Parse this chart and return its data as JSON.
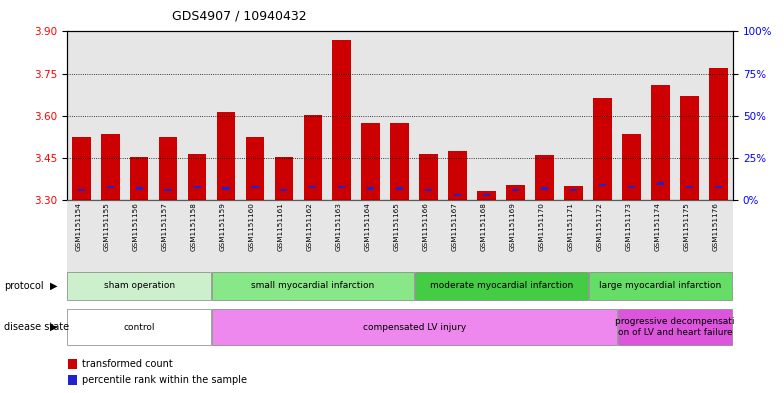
{
  "title": "GDS4907 / 10940432",
  "samples": [
    "GSM1151154",
    "GSM1151155",
    "GSM1151156",
    "GSM1151157",
    "GSM1151158",
    "GSM1151159",
    "GSM1151160",
    "GSM1151161",
    "GSM1151162",
    "GSM1151163",
    "GSM1151164",
    "GSM1151165",
    "GSM1151166",
    "GSM1151167",
    "GSM1151168",
    "GSM1151169",
    "GSM1151170",
    "GSM1151171",
    "GSM1151172",
    "GSM1151173",
    "GSM1151174",
    "GSM1151175",
    "GSM1151176"
  ],
  "red_values": [
    3.525,
    3.535,
    3.455,
    3.525,
    3.465,
    3.615,
    3.525,
    3.455,
    3.605,
    3.87,
    3.575,
    3.575,
    3.465,
    3.475,
    3.335,
    3.355,
    3.46,
    3.35,
    3.665,
    3.535,
    3.71,
    3.67,
    3.77
  ],
  "blue_values": [
    6,
    8,
    7,
    6,
    8,
    7,
    8,
    6,
    8,
    8,
    7,
    7,
    6,
    3,
    3,
    6,
    7,
    6,
    9,
    8,
    10,
    8,
    8
  ],
  "y_min": 3.3,
  "y_max": 3.9,
  "y_ticks_left": [
    3.3,
    3.45,
    3.6,
    3.75,
    3.9
  ],
  "y_ticks_right": [
    0,
    25,
    50,
    75,
    100
  ],
  "bar_color": "#cc0000",
  "blue_color": "#2222cc",
  "col_bg_color": "#c8c8c8",
  "protocol_groups": [
    {
      "label": "sham operation",
      "start": 0,
      "end": 4,
      "color": "#ccf0cc"
    },
    {
      "label": "small myocardial infarction",
      "start": 5,
      "end": 11,
      "color": "#88e888"
    },
    {
      "label": "moderate myocardial infarction",
      "start": 12,
      "end": 17,
      "color": "#44cc44"
    },
    {
      "label": "large myocardial infarction",
      "start": 18,
      "end": 22,
      "color": "#66dd66"
    }
  ],
  "disease_groups": [
    {
      "label": "control",
      "start": 0,
      "end": 4,
      "color": "#ffffff"
    },
    {
      "label": "compensated LV injury",
      "start": 5,
      "end": 18,
      "color": "#ee88ee"
    },
    {
      "label": "progressive decompensati\non of LV and heart failure",
      "start": 19,
      "end": 22,
      "color": "#dd55dd"
    }
  ]
}
